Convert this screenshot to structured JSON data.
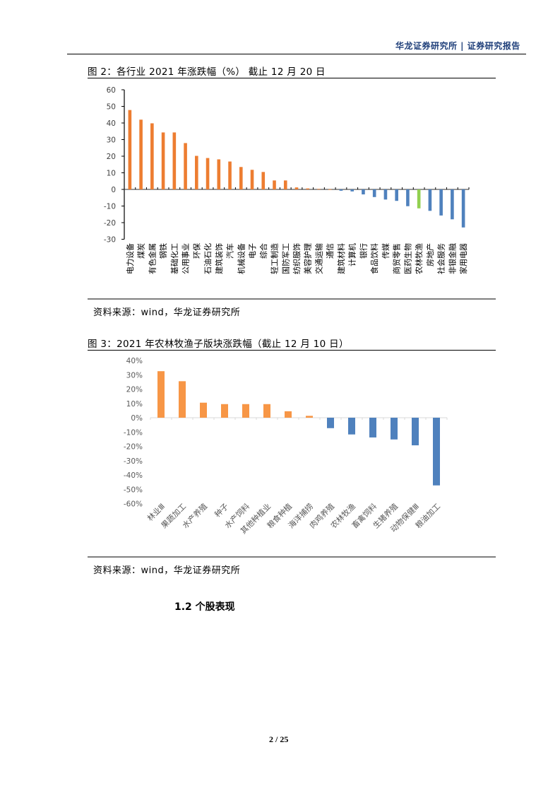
{
  "header": {
    "text": "华龙证券研究所 | 证券研究报告"
  },
  "figure2": {
    "title": "图 2：各行业 2021 年涨跌幅（%） 截止 12 月 20 日",
    "source": "资料来源：wind，华龙证券研究所"
  },
  "figure3": {
    "title": "图 3：2021 年农林牧渔子版块涨跌幅（截止 12 月 10 日）",
    "source": "资料来源：wind，华龙证券研究所"
  },
  "section": {
    "heading": "1.2 个股表现"
  },
  "footer": {
    "page": "2 / 25"
  },
  "colors": {
    "positive_chart2": "#ED7D31",
    "negative_chart2": "#4F81BD",
    "highlight": "#92D050",
    "positive_chart3": "#F79646",
    "negative_chart3": "#4F81BD",
    "header_text": "#1F3F7A"
  },
  "chart_data": [
    {
      "type": "bar",
      "title": "各行业 2021 年涨跌幅（%） 截止 12 月 20 日",
      "xlabel": "",
      "ylabel": "",
      "ylim": [
        -30,
        60
      ],
      "yticks": [
        60,
        50,
        40,
        30,
        20,
        10,
        0,
        -10,
        -20,
        -30
      ],
      "grid": false,
      "legend": null,
      "categories": [
        "电力设备",
        "煤炭",
        "有色金属",
        "钢铁",
        "基础化工",
        "公用事业",
        "环保",
        "石油石化",
        "建筑装饰",
        "汽车",
        "机械设备",
        "电子",
        "综合",
        "轻工制造",
        "国防军工",
        "纺织服饰",
        "美容护理",
        "交通运输",
        "通信",
        "建筑材料",
        "计算机",
        "银行",
        "食品饮料",
        "传媒",
        "商贸零售",
        "医药生物",
        "农林牧渔",
        "房地产",
        "社会服务",
        "非银金融",
        "家用电器"
      ],
      "values": [
        47.8,
        42.0,
        39.8,
        34.3,
        34.3,
        27.9,
        20.2,
        18.9,
        18.1,
        16.8,
        13.5,
        11.8,
        10.5,
        5.4,
        5.4,
        1.2,
        0.6,
        0.3,
        0.1,
        -0.8,
        -1.2,
        -3.0,
        -4.6,
        -6.1,
        -6.9,
        -10.1,
        -11.4,
        -12.9,
        -15.7,
        -18.0,
        -22.9
      ],
      "highlight_category": "农林牧渔"
    },
    {
      "type": "bar",
      "title": "2021 年农林牧渔子版块涨跌幅（截止 12 月 10 日）",
      "xlabel": "",
      "ylabel": "",
      "ylim": [
        -60,
        40
      ],
      "yticks": [
        "40%",
        "30%",
        "20%",
        "10%",
        "0%",
        "-10%",
        "-20%",
        "-30%",
        "-40%",
        "-50%",
        "-60%"
      ],
      "grid": false,
      "legend": null,
      "categories": [
        "林业Ⅲ",
        "果蔬加工",
        "水产养殖",
        "种子",
        "水产饲料",
        "其他种植业",
        "粮食种植",
        "海洋捕捞",
        "肉鸡养殖",
        "农林牧渔",
        "畜禽饲料",
        "生猪养殖",
        "动物保健Ⅲ",
        "粮油加工"
      ],
      "values": [
        32.5,
        25.5,
        10.5,
        9.5,
        9.5,
        9.5,
        4.5,
        1.3,
        -7.3,
        -11.7,
        -13.8,
        -15.2,
        -19.3,
        -47.3
      ]
    }
  ]
}
